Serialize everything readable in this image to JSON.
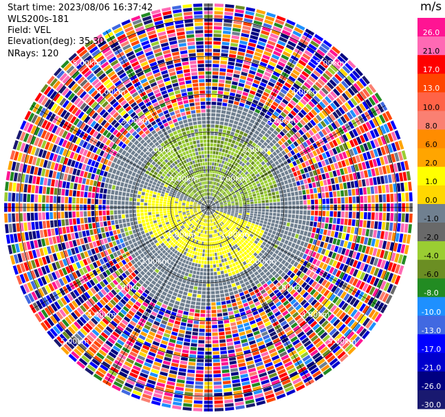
{
  "header": {
    "start_time": "Start time: 2023/08/06 16:37:42",
    "instrument": "WLS200s-181",
    "field": "Field: VEL",
    "elevation": "Elevation(deg): 35.30",
    "nrays": "NRays: 120"
  },
  "chart_data": {
    "type": "heatmap",
    "projection": "polar-ppi",
    "field": "VEL",
    "n_rays": 120,
    "elevation_deg": 35.3,
    "range_rings_km": [
      1,
      2,
      3,
      4,
      5
    ],
    "range_ring_labels": [
      "1.00km",
      "2.00km",
      "3.00km",
      "4.00km",
      "5.00km"
    ],
    "spoke_angles_deg": [
      0,
      30,
      60,
      90,
      120,
      150,
      180,
      210,
      240,
      270,
      300,
      330
    ],
    "max_range_km": 5.4,
    "colorbar": {
      "unit": "m/s",
      "tick_labels": [
        "26.0",
        "21.0",
        "17.0",
        "13.0",
        "10.0",
        "8.0",
        "6.0",
        "2.0",
        "1.0",
        "0.0",
        "-1.0",
        "-2.0",
        "-4.0",
        "-6.0",
        "-8.0",
        "-10.0",
        "-13.0",
        "-17.0",
        "-21.0",
        "-26.0",
        "-30.0"
      ],
      "bins": [
        {
          "from": 26,
          "to": 30,
          "color": "#ff1493"
        },
        {
          "from": 21,
          "to": 26,
          "color": "#ff69b4"
        },
        {
          "from": 17,
          "to": 21,
          "color": "#ff0000"
        },
        {
          "from": 13,
          "to": 17,
          "color": "#ff4500"
        },
        {
          "from": 10,
          "to": 13,
          "color": "#ff6347"
        },
        {
          "from": 8,
          "to": 10,
          "color": "#fa8072"
        },
        {
          "from": 6,
          "to": 8,
          "color": "#ff8c00"
        },
        {
          "from": 2,
          "to": 6,
          "color": "#ffa500"
        },
        {
          "from": 1,
          "to": 2,
          "color": "#ffff00"
        },
        {
          "from": 0,
          "to": 1,
          "color": "#ffd700"
        },
        {
          "from": -1,
          "to": 0,
          "color": "#708090"
        },
        {
          "from": -2,
          "to": -1,
          "color": "#696969"
        },
        {
          "from": -4,
          "to": -2,
          "color": "#9acd32"
        },
        {
          "from": -6,
          "to": -4,
          "color": "#6b8e23"
        },
        {
          "from": -8,
          "to": -6,
          "color": "#228b22"
        },
        {
          "from": -10,
          "to": -8,
          "color": "#1e90ff"
        },
        {
          "from": -13,
          "to": -10,
          "color": "#4169e1"
        },
        {
          "from": -17,
          "to": -13,
          "color": "#0000ff"
        },
        {
          "from": -21,
          "to": -17,
          "color": "#0000cd"
        },
        {
          "from": -26,
          "to": -21,
          "color": "#000080"
        },
        {
          "from": -30,
          "to": -26,
          "color": "#191970"
        }
      ]
    },
    "regions": [
      {
        "description": "near-zero (grey) field up to ~2.4 km",
        "r_from_km": 0,
        "r_to_km": 2.4
      },
      {
        "description": "negative (green) band north/north-east",
        "az_from_deg": 300,
        "az_to_deg": 80,
        "r_from_km": 0.4,
        "r_to_km": 2.1
      },
      {
        "description": "positive (yellow) band south/south-west",
        "az_from_deg": 120,
        "az_to_deg": 280,
        "r_from_km": 0.3,
        "r_to_km": 1.6
      },
      {
        "description": "noise (random colors) beyond ~2.6 km",
        "r_from_km": 2.6,
        "r_to_km": 5.4
      }
    ]
  }
}
